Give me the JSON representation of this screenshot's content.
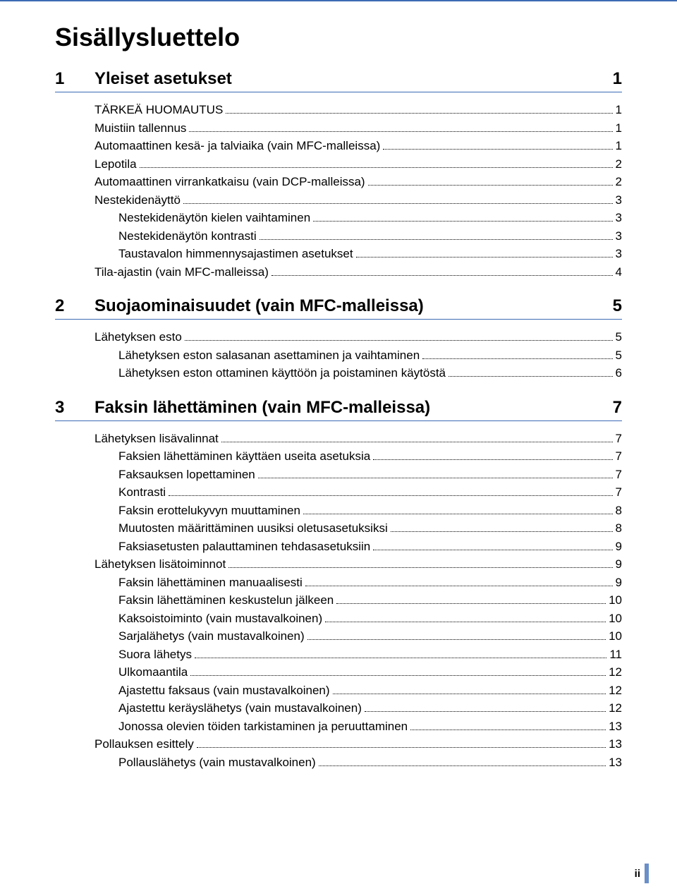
{
  "title": "Sisällysluettelo",
  "colors": {
    "rule": "#3b6bb5",
    "text": "#000000",
    "footer_bar": "#6a8fc9",
    "background": "#ffffff"
  },
  "typography": {
    "title_fontsize": 36,
    "section_fontsize": 24,
    "entry_fontsize": 17,
    "font_family": "Arial"
  },
  "sections": [
    {
      "number": "1",
      "title": "Yleiset asetukset",
      "page": "1",
      "entries": [
        {
          "label": "TÄRKEÄ HUOMAUTUS",
          "page": "1",
          "level": 0
        },
        {
          "label": "Muistiin tallennus",
          "page": "1",
          "level": 0
        },
        {
          "label": "Automaattinen kesä- ja talviaika (vain MFC-malleissa)",
          "page": "1",
          "level": 0
        },
        {
          "label": "Lepotila",
          "page": "2",
          "level": 0
        },
        {
          "label": "Automaattinen virrankatkaisu (vain DCP-malleissa)",
          "page": "2",
          "level": 0
        },
        {
          "label": "Nestekidenäyttö",
          "page": "3",
          "level": 0
        },
        {
          "label": "Nestekidenäytön kielen vaihtaminen",
          "page": "3",
          "level": 1
        },
        {
          "label": "Nestekidenäytön kontrasti",
          "page": "3",
          "level": 1
        },
        {
          "label": "Taustavalon himmennysajastimen asetukset",
          "page": "3",
          "level": 1
        },
        {
          "label": "Tila-ajastin (vain MFC-malleissa)",
          "page": "4",
          "level": 0
        }
      ]
    },
    {
      "number": "2",
      "title": "Suojaominaisuudet (vain MFC-malleissa)",
      "page": "5",
      "entries": [
        {
          "label": "Lähetyksen esto",
          "page": "5",
          "level": 0
        },
        {
          "label": "Lähetyksen eston salasanan asettaminen ja vaihtaminen",
          "page": "5",
          "level": 1
        },
        {
          "label": "Lähetyksen eston ottaminen käyttöön ja poistaminen käytöstä",
          "page": "6",
          "level": 1
        }
      ]
    },
    {
      "number": "3",
      "title": "Faksin lähettäminen (vain MFC-malleissa)",
      "page": "7",
      "entries": [
        {
          "label": "Lähetyksen lisävalinnat",
          "page": "7",
          "level": 0
        },
        {
          "label": "Faksien lähettäminen käyttäen useita asetuksia",
          "page": "7",
          "level": 1
        },
        {
          "label": "Faksauksen lopettaminen",
          "page": "7",
          "level": 1
        },
        {
          "label": "Kontrasti",
          "page": "7",
          "level": 1
        },
        {
          "label": "Faksin erottelukyvyn muuttaminen",
          "page": "8",
          "level": 1
        },
        {
          "label": "Muutosten määrittäminen uusiksi oletusasetuksiksi",
          "page": "8",
          "level": 1
        },
        {
          "label": "Faksiasetusten palauttaminen tehdasasetuksiin",
          "page": "9",
          "level": 1
        },
        {
          "label": "Lähetyksen lisätoiminnot",
          "page": "9",
          "level": 0
        },
        {
          "label": "Faksin lähettäminen manuaalisesti",
          "page": "9",
          "level": 1
        },
        {
          "label": "Faksin lähettäminen keskustelun jälkeen",
          "page": "10",
          "level": 1
        },
        {
          "label": "Kaksoistoiminto (vain mustavalkoinen)",
          "page": "10",
          "level": 1
        },
        {
          "label": "Sarjalähetys (vain mustavalkoinen)",
          "page": "10",
          "level": 1
        },
        {
          "label": "Suora lähetys",
          "page": "11",
          "level": 1
        },
        {
          "label": "Ulkomaantila",
          "page": "12",
          "level": 1
        },
        {
          "label": "Ajastettu faksaus (vain mustavalkoinen)",
          "page": "12",
          "level": 1
        },
        {
          "label": "Ajastettu keräyslähetys (vain mustavalkoinen)",
          "page": "12",
          "level": 1
        },
        {
          "label": "Jonossa olevien töiden tarkistaminen ja peruuttaminen",
          "page": "13",
          "level": 1
        },
        {
          "label": "Pollauksen esittely",
          "page": "13",
          "level": 0
        },
        {
          "label": "Pollauslähetys (vain mustavalkoinen)",
          "page": "13",
          "level": 1
        }
      ]
    }
  ],
  "footer_page": "ii"
}
